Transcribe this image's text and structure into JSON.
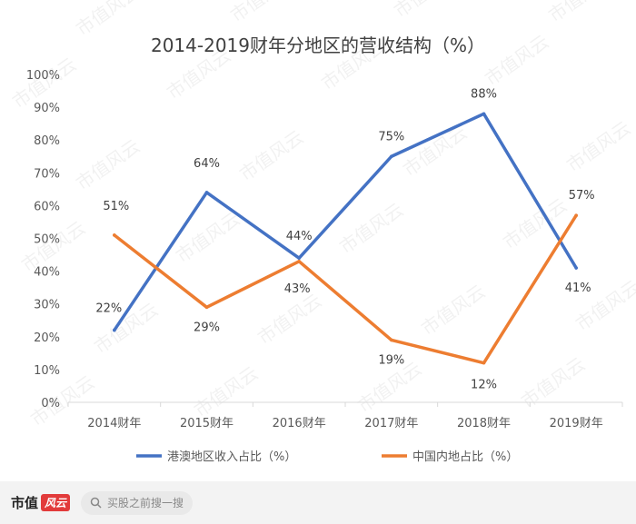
{
  "chart_data": {
    "type": "line",
    "title": "2014-2019财年分地区的营收结构（%）",
    "categories": [
      "2014财年",
      "2015财年",
      "2016财年",
      "2017财年",
      "2018财年",
      "2019财年"
    ],
    "y_ticks": [
      "0%",
      "10%",
      "20%",
      "30%",
      "40%",
      "50%",
      "60%",
      "70%",
      "80%",
      "90%",
      "100%"
    ],
    "ylim": [
      0,
      100
    ],
    "grid": false,
    "legend_position": "bottom",
    "series": [
      {
        "name": "港澳地区收入占比（%）",
        "color": "#4472c4",
        "values": [
          22,
          64,
          44,
          75,
          88,
          41
        ],
        "labels": [
          "22%",
          "64%",
          "44%",
          "75%",
          "88%",
          "41%"
        ]
      },
      {
        "name": "中国内地占比（%）",
        "color": "#ed7d31",
        "values": [
          51,
          29,
          43,
          19,
          12,
          57
        ],
        "labels": [
          "51%",
          "29%",
          "43%",
          "19%",
          "12%",
          "57%"
        ]
      }
    ]
  },
  "watermark": "市值风云",
  "footer": {
    "brand": "市值",
    "brand_badge": "风云",
    "search_placeholder": "买股之前搜一搜",
    "search_icon": "search-icon"
  }
}
